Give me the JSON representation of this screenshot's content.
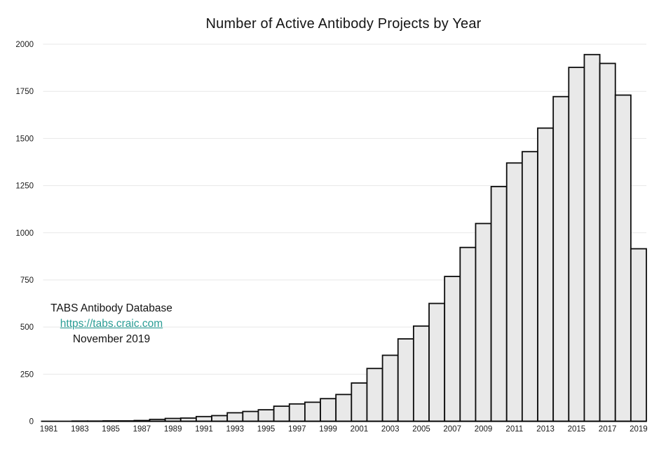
{
  "title": "Number of Active Antibody Projects by Year",
  "annotation": {
    "source_label": "TABS Antibody Database",
    "link": "https://tabs.craic.com",
    "date_label": "November 2019"
  },
  "chart_data": {
    "type": "bar",
    "title": "Number of Active Antibody Projects by Year",
    "xlabel": "",
    "ylabel": "",
    "categories": [
      1981,
      1982,
      1983,
      1984,
      1985,
      1986,
      1987,
      1988,
      1989,
      1990,
      1991,
      1992,
      1993,
      1994,
      1995,
      1996,
      1997,
      1998,
      1999,
      2000,
      2001,
      2002,
      2003,
      2004,
      2005,
      2006,
      2007,
      2008,
      2009,
      2010,
      2011,
      2012,
      2013,
      2014,
      2015,
      2016,
      2017,
      2018,
      2019
    ],
    "values": [
      0,
      0,
      1,
      1,
      2,
      2,
      4,
      10,
      15,
      17,
      25,
      30,
      45,
      52,
      61,
      80,
      92,
      101,
      120,
      142,
      203,
      280,
      350,
      437,
      505,
      625,
      768,
      922,
      1049,
      1245,
      1370,
      1430,
      1555,
      1722,
      1877,
      1945,
      1898,
      1730,
      915
    ],
    "x_tick_labels": [
      "1981",
      "1983",
      "1985",
      "1987",
      "1989",
      "1991",
      "1993",
      "1995",
      "1997",
      "1999",
      "2001",
      "2003",
      "2005",
      "2007",
      "2009",
      "2011",
      "2013",
      "2015",
      "2017",
      "2019"
    ],
    "y_ticks": [
      0,
      250,
      500,
      750,
      1000,
      1250,
      1500,
      1750,
      2000
    ],
    "ylim": [
      0,
      2000
    ],
    "grid": true,
    "legend": "none",
    "colors": {
      "bar_fill": "#e9e9e9",
      "bar_stroke": "#0d0d0d",
      "gridline": "#e7e7e7",
      "axis": "#000000",
      "tick_text": "#1a1a1a",
      "link": "#2a9d95"
    }
  }
}
